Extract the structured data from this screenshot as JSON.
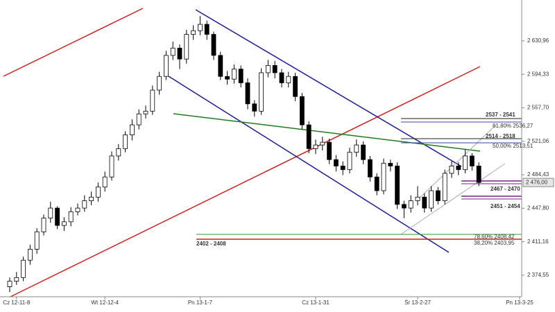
{
  "chart_data": {
    "type": "candlestick",
    "categories": [
      null,
      "Cz 12-11-8",
      null,
      null,
      null,
      null,
      null,
      null,
      null,
      null,
      null,
      null,
      null,
      null,
      "Wt 12-12-4",
      null,
      null,
      null,
      null,
      null,
      null,
      null,
      null,
      null,
      null,
      null,
      null,
      null,
      "Pn 13-1-7",
      null,
      null,
      null,
      null,
      null,
      null,
      null,
      null,
      null,
      null,
      null,
      null,
      null,
      null,
      null,
      null,
      "Cz 13-1-31",
      null,
      null,
      null,
      null,
      null,
      null,
      null,
      null,
      null,
      null,
      null,
      null,
      null,
      null,
      "Śr 13-2-27",
      null,
      null,
      null,
      null,
      null,
      null,
      null,
      null,
      null,
      null,
      null,
      null,
      null,
      null,
      "Pn 13-3-25"
    ],
    "open": [
      2362,
      2368,
      2372,
      2391,
      2403,
      2422,
      2437,
      2448,
      2429,
      2433,
      2444,
      2448,
      2456,
      2460,
      2471,
      2482,
      2505,
      2513,
      2528,
      2539,
      2551,
      2554,
      2577,
      2592,
      2615,
      2623,
      2611,
      2638,
      2642,
      2649,
      2638,
      2615,
      2592,
      2589,
      2600,
      2585,
      2562,
      2554,
      2596,
      2604,
      2596,
      2585,
      2592,
      2570,
      2539,
      2513,
      2517,
      2520,
      2501,
      2494,
      2490,
      2509,
      2517,
      2501,
      2482,
      2467,
      2497,
      2494,
      2452,
      2448,
      2456,
      2460,
      2448,
      2467,
      2456,
      2486,
      2494,
      2490,
      2505,
      2494,
      null,
      null,
      null,
      null,
      null,
      null
    ],
    "high": [
      2372,
      2378,
      2395,
      2408,
      2426,
      2441,
      2455,
      2450,
      2438,
      2449,
      2453,
      2462,
      2466,
      2476,
      2488,
      2510,
      2518,
      2532,
      2545,
      2556,
      2560,
      2582,
      2597,
      2620,
      2630,
      2627,
      2643,
      2648,
      2658,
      2653,
      2641,
      2619,
      2598,
      2605,
      2604,
      2590,
      2566,
      2601,
      2610,
      2609,
      2600,
      2597,
      2596,
      2574,
      2543,
      2523,
      2526,
      2524,
      2506,
      2499,
      2514,
      2523,
      2521,
      2505,
      2486,
      2502,
      2501,
      2498,
      2456,
      2462,
      2472,
      2464,
      2472,
      2471,
      2490,
      2499,
      2498,
      2512,
      2508,
      2498,
      null,
      null,
      null,
      null,
      null,
      null
    ],
    "low": [
      2356,
      2364,
      2368,
      2386,
      2398,
      2418,
      2432,
      2425,
      2423,
      2428,
      2440,
      2444,
      2451,
      2455,
      2466,
      2478,
      2500,
      2509,
      2522,
      2534,
      2546,
      2550,
      2572,
      2588,
      2610,
      2600,
      2606,
      2632,
      2637,
      2632,
      2610,
      2588,
      2583,
      2584,
      2580,
      2556,
      2548,
      2550,
      2591,
      2590,
      2580,
      2580,
      2565,
      2534,
      2508,
      2507,
      2511,
      2496,
      2488,
      2484,
      2486,
      2504,
      2496,
      2477,
      2462,
      2463,
      2488,
      2447,
      2437,
      2443,
      2451,
      2443,
      2444,
      2452,
      2452,
      2481,
      2484,
      2486,
      2489,
      2472,
      null,
      null,
      null,
      null,
      null,
      null
    ],
    "close": [
      2368,
      2372,
      2391,
      2403,
      2422,
      2437,
      2448,
      2429,
      2433,
      2444,
      2448,
      2456,
      2460,
      2471,
      2482,
      2505,
      2513,
      2528,
      2539,
      2551,
      2554,
      2577,
      2592,
      2615,
      2623,
      2611,
      2638,
      2642,
      2649,
      2638,
      2615,
      2592,
      2589,
      2600,
      2585,
      2562,
      2554,
      2596,
      2604,
      2596,
      2585,
      2592,
      2570,
      2539,
      2513,
      2517,
      2520,
      2501,
      2494,
      2490,
      2509,
      2517,
      2501,
      2482,
      2467,
      2497,
      2494,
      2452,
      2448,
      2456,
      2460,
      2448,
      2467,
      2456,
      2486,
      2494,
      2490,
      2505,
      2494,
      2476,
      null,
      null,
      null,
      null,
      null,
      null
    ],
    "up_color": "#ffffff",
    "down_color": "#000000",
    "ylim": [
      2351,
      2668
    ],
    "yticks": [
      {
        "value": 2630.96,
        "label": "2 630,96"
      },
      {
        "value": 2594.33,
        "label": "2 594,33"
      },
      {
        "value": 2557.7,
        "label": "2 557,70"
      },
      {
        "value": 2521.06,
        "label": "2 521,06"
      },
      {
        "value": 2484.43,
        "label": "2 484,43"
      },
      {
        "value": 2447.8,
        "label": "2 447,80"
      },
      {
        "value": 2411.16,
        "label": "2 411,16"
      },
      {
        "value": 2374.55,
        "label": "2 374,55"
      }
    ],
    "last_price": {
      "value": 2476,
      "label": "2 476,00"
    },
    "annotations": [
      "2537 - 2541",
      "61,80% 2536,27",
      "2514 - 2518",
      "50,00% 2513,51",
      "2467 - 2470",
      "2451 - 2454",
      "2402 - 2408",
      "78,60% 2408,42",
      "38,20% 2403,95"
    ]
  }
}
